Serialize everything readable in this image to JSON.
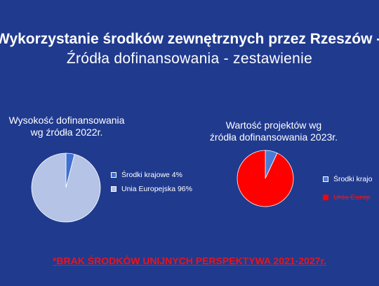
{
  "header": {
    "title": "Wykorzystanie środków zewnętrznych przez Rzeszów -",
    "subtitle": "Źródła dofinansowania - zestawienie"
  },
  "chart_data": [
    {
      "type": "pie",
      "title_lines": [
        "Wysokość dofinansowania",
        "wg źródła 2022r."
      ],
      "slices": [
        {
          "label": "Środki krajowe 4%",
          "value": 4,
          "color": "#3f6fd0"
        },
        {
          "label": "Unia Europejska 96%",
          "value": 96,
          "color": "#b4c3e6"
        }
      ],
      "legend_placement": "right"
    },
    {
      "type": "pie",
      "title_lines": [
        "Wartość projektów wg",
        "źródła dofinansowania 2023r."
      ],
      "slices": [
        {
          "label": "Środki krajo",
          "value": 7,
          "color": "#4a7cd6"
        },
        {
          "label": "Unia Europ",
          "value": 93,
          "color": "#fe0000"
        }
      ],
      "legend_placement": "right"
    }
  ],
  "footer": {
    "note": "*BRAK ŚRODKÓW UNIJNYCH PERSPEKTYWA 2021-2027r."
  }
}
